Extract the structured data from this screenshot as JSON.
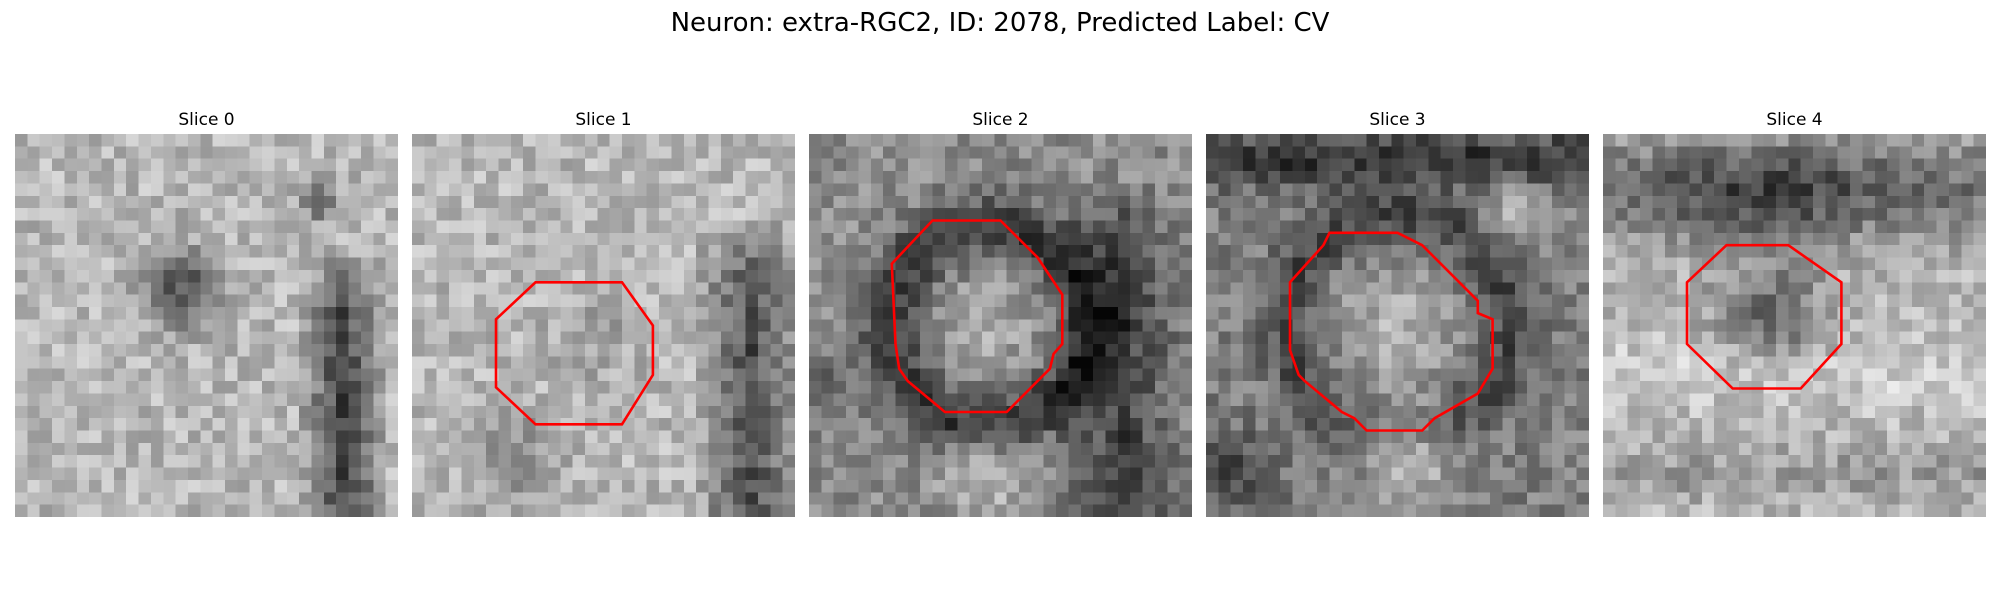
{
  "figure": {
    "title": "Neuron: extra-RGC2, ID: 2078, Predicted Label: CV",
    "outline_color": "#ff0000",
    "colormap": "grayscale",
    "slices": [
      {
        "title": "Slice 0",
        "has_outline": false
      },
      {
        "title": "Slice 1",
        "has_outline": true
      },
      {
        "title": "Slice 2",
        "has_outline": true
      },
      {
        "title": "Slice 3",
        "has_outline": true
      },
      {
        "title": "Slice 4",
        "has_outline": true
      }
    ]
  }
}
